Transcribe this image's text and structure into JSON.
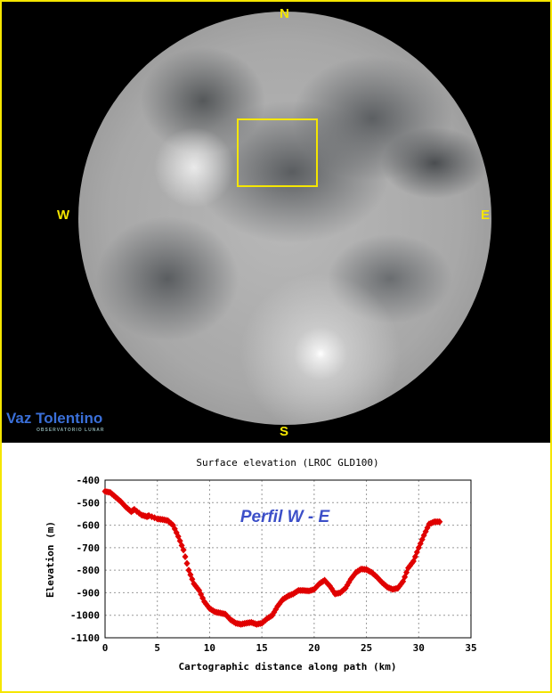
{
  "image": {
    "directions": {
      "north": "N",
      "south": "S",
      "west": "W",
      "east": "E"
    },
    "logo_text": "Vaz Tolentino",
    "logo_subtext": "OBSERVATORIO LUNAR",
    "highlight_color": "#f5e600"
  },
  "chart_data": {
    "type": "scatter",
    "title": "Surface elevation (LROC GLD100)",
    "xlabel": "Cartographic distance along path (km)",
    "ylabel": "Elevation (m)",
    "annotation": "Perfil  W - E",
    "xlim": [
      0,
      35
    ],
    "ylim": [
      -1100,
      -400
    ],
    "xticks": [
      0,
      5,
      10,
      15,
      20,
      25,
      30,
      35
    ],
    "yticks": [
      -400,
      -500,
      -600,
      -700,
      -800,
      -900,
      -1000,
      -1100
    ],
    "grid": true,
    "marker_color": "#e00000",
    "annotation_color": "#3c4fc8",
    "x": [
      0,
      0.5,
      1,
      1.5,
      2,
      2.5,
      2.8,
      3.5,
      4,
      4.2,
      5,
      5.5,
      6,
      6.5,
      7,
      7.5,
      8,
      8.5,
      9,
      9.5,
      10,
      10.5,
      11,
      11.5,
      12,
      12.5,
      13,
      13.5,
      14,
      14.5,
      15,
      15.5,
      16,
      16.5,
      17,
      17.5,
      18,
      18.5,
      19,
      19.5,
      20,
      20.5,
      21,
      21.5,
      22,
      22.5,
      23,
      23.5,
      24,
      24.5,
      25,
      25.5,
      26,
      26.5,
      27,
      27.5,
      28,
      28.5,
      29,
      29.5,
      30,
      30.5,
      31,
      31.5,
      32
    ],
    "y": [
      -450,
      -455,
      -475,
      -495,
      -520,
      -540,
      -530,
      -555,
      -562,
      -558,
      -572,
      -575,
      -580,
      -600,
      -650,
      -710,
      -800,
      -860,
      -890,
      -940,
      -970,
      -985,
      -990,
      -995,
      -1020,
      -1035,
      -1040,
      -1035,
      -1032,
      -1040,
      -1035,
      -1015,
      -1000,
      -960,
      -930,
      -915,
      -905,
      -890,
      -890,
      -892,
      -885,
      -860,
      -845,
      -870,
      -905,
      -900,
      -880,
      -840,
      -810,
      -795,
      -797,
      -810,
      -830,
      -855,
      -875,
      -885,
      -880,
      -850,
      -790,
      -760,
      -700,
      -645,
      -595,
      -585,
      -585
    ]
  }
}
